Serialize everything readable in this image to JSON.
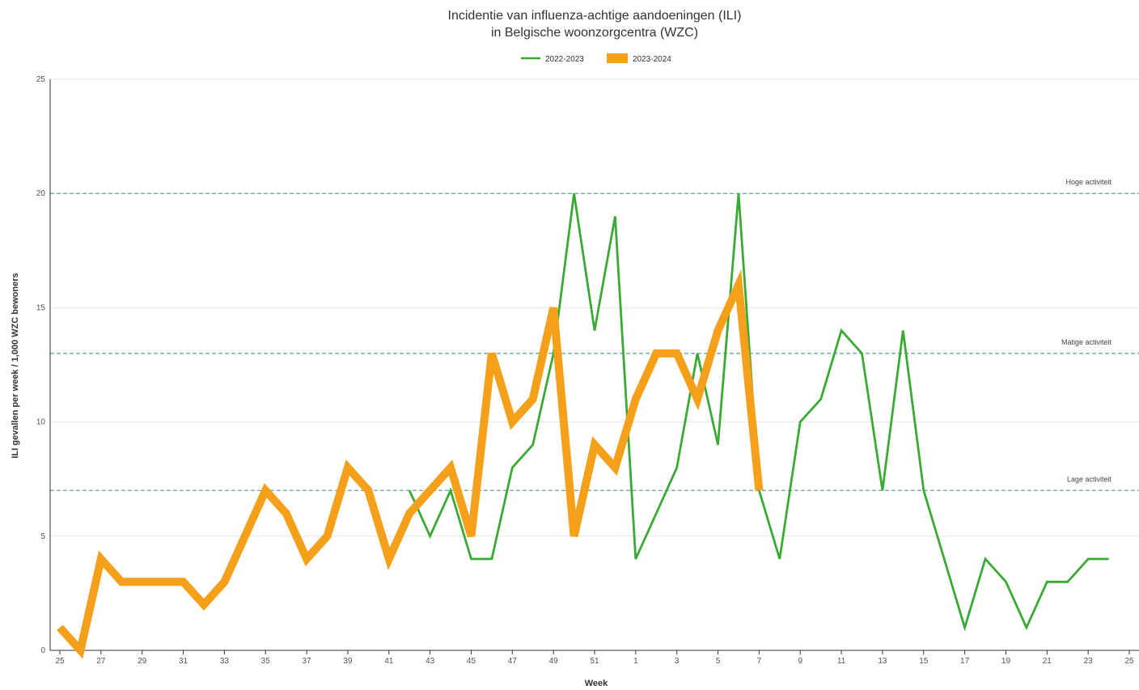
{
  "chart_data": {
    "type": "line",
    "title_lines": [
      "Incidentie van influenza-achtige aandoeningen (ILI)",
      "in Belgische woonzorgcentra (WZC)"
    ],
    "xlabel": "Week",
    "ylabel": "ILI gevallen per week / 1,000 WZC bewoners",
    "ylim": [
      0,
      25
    ],
    "yticks": [
      "0",
      "5",
      "10",
      "15",
      "20",
      "25"
    ],
    "x_ticks": [
      "25",
      "27",
      "29",
      "31",
      "33",
      "35",
      "37",
      "39",
      "41",
      "43",
      "45",
      "47",
      "49",
      "51",
      "1",
      "3",
      "5",
      "7",
      "9",
      "11",
      "13",
      "15",
      "17",
      "19",
      "21",
      "23",
      "25"
    ],
    "grid": true,
    "legend_position": "top-center",
    "thresholds": [
      {
        "label": "Hoge activiteit",
        "value": 20
      },
      {
        "label": "Matige activiteit",
        "value": 13
      },
      {
        "label": "Lage activiteit",
        "value": 7
      }
    ],
    "series": [
      {
        "name": "2022-2023",
        "color": "#3aaa35",
        "weeks": [
          "42",
          "43",
          "44",
          "45",
          "46",
          "47",
          "48",
          "49",
          "50",
          "51",
          "52",
          "1",
          "2",
          "3",
          "4",
          "5",
          "6",
          "7",
          "8",
          "9",
          "10",
          "11",
          "12",
          "13",
          "14",
          "15",
          "16",
          "17",
          "18",
          "19",
          "20",
          "21",
          "22",
          "23",
          "24"
        ],
        "values": [
          7,
          5,
          7,
          4,
          4,
          8,
          9,
          13,
          20,
          14,
          19,
          4,
          6,
          8,
          13,
          9,
          20,
          7,
          4,
          10,
          11,
          14,
          13,
          7,
          14,
          7,
          4,
          1,
          4,
          3,
          1,
          3,
          3,
          4,
          4
        ]
      },
      {
        "name": "2023-2024",
        "color": "#f5a01a",
        "weeks": [
          "25",
          "26",
          "27",
          "28",
          "29",
          "30",
          "31",
          "32",
          "33",
          "34",
          "35",
          "36",
          "37",
          "38",
          "39",
          "40",
          "41",
          "42",
          "43",
          "44",
          "45",
          "46",
          "47",
          "48",
          "49",
          "50",
          "51",
          "52",
          "1",
          "2",
          "3",
          "4",
          "5",
          "6",
          "7"
        ],
        "values": [
          1,
          0,
          4,
          3,
          3,
          3,
          3,
          2,
          3,
          5,
          7,
          6,
          4,
          5,
          8,
          7,
          4,
          6,
          7,
          8,
          5,
          13,
          10,
          11,
          15,
          5,
          9,
          8,
          11,
          13,
          13,
          11,
          14,
          16,
          7
        ]
      }
    ]
  }
}
